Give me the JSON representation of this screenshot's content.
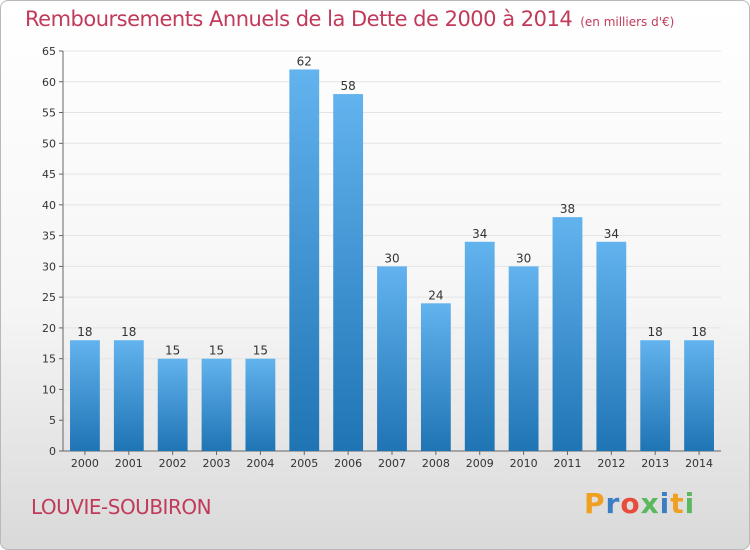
{
  "chart_data": {
    "type": "bar",
    "title": "Remboursements Annuels de la Dette de 2000 à 2014",
    "unit_label": "(en milliers d'€)",
    "categories": [
      "2000",
      "2001",
      "2002",
      "2003",
      "2004",
      "2005",
      "2006",
      "2007",
      "2008",
      "2009",
      "2010",
      "2011",
      "2012",
      "2013",
      "2014"
    ],
    "values": [
      18,
      18,
      15,
      15,
      15,
      62,
      58,
      30,
      24,
      34,
      30,
      38,
      34,
      18,
      18
    ],
    "ylim": [
      0,
      65
    ],
    "yticks": [
      0,
      5,
      10,
      15,
      20,
      25,
      30,
      35,
      40,
      45,
      50,
      55,
      60,
      65
    ],
    "xlabel": "",
    "ylabel": "",
    "grid": true
  },
  "commune": "LOUVIE-SOUBIRON",
  "logo": {
    "letters": [
      "P",
      "r",
      "o",
      "x",
      "i",
      "t",
      "i"
    ],
    "colors": [
      "#f0a020",
      "#3a7fc4",
      "#e74c3c",
      "#5cb85c",
      "#3a7fc4",
      "#f0a020",
      "#5cb85c"
    ]
  },
  "colors": {
    "bar_light": "#62b3ee",
    "bar_dark": "#1f74b4",
    "title": "#c23a5a"
  }
}
